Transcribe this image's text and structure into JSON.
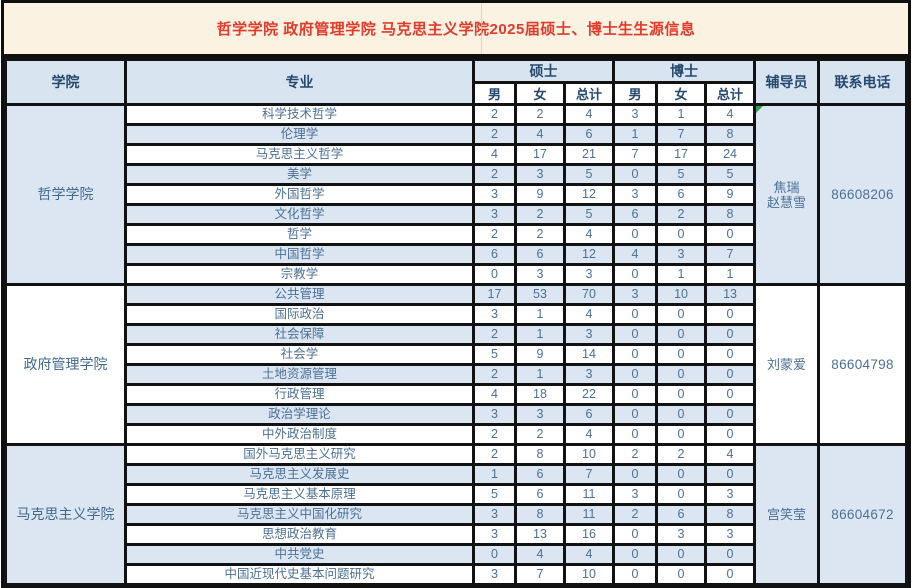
{
  "title": "哲学学院 政府管理学院 马克思主义学院2025届硕士、博士生生源信息",
  "colors": {
    "title_text": "#e23a2b",
    "title_bg": "#fbf2e2",
    "header_bg": "#d8e4f0",
    "band_row_bg": "#dbe6f2",
    "cell_text": "#4c7095",
    "header_text": "#26496f",
    "border": "#121212",
    "comment_marker_green": "#2f9e4e"
  },
  "header": {
    "college": "学院",
    "major": "专业",
    "master": "硕士",
    "doctor": "博士",
    "counselor": "辅导员",
    "phone": "联系电话",
    "sub": [
      "男",
      "女",
      "总计",
      "男",
      "女",
      "总计"
    ]
  },
  "sections": [
    {
      "college": "哲学学院",
      "shaded": true,
      "counselor_lines": [
        "焦瑞",
        "赵慧雪"
      ],
      "phone": "86608206",
      "has_comment_marker": true,
      "rows": [
        {
          "major": "科学技术哲学",
          "m": [
            2,
            2,
            4
          ],
          "d": [
            3,
            1,
            4
          ],
          "shaded": false
        },
        {
          "major": "伦理学",
          "m": [
            2,
            4,
            6
          ],
          "d": [
            1,
            7,
            8
          ],
          "shaded": true
        },
        {
          "major": "马克思主义哲学",
          "m": [
            4,
            17,
            21
          ],
          "d": [
            7,
            17,
            24
          ],
          "shaded": false
        },
        {
          "major": "美学",
          "m": [
            2,
            3,
            5
          ],
          "d": [
            0,
            5,
            5
          ],
          "shaded": true
        },
        {
          "major": "外国哲学",
          "m": [
            3,
            9,
            12
          ],
          "d": [
            3,
            6,
            9
          ],
          "shaded": false
        },
        {
          "major": "文化哲学",
          "m": [
            3,
            2,
            5
          ],
          "d": [
            6,
            2,
            8
          ],
          "shaded": true
        },
        {
          "major": "哲学",
          "m": [
            2,
            2,
            4
          ],
          "d": [
            0,
            0,
            0
          ],
          "shaded": false
        },
        {
          "major": "中国哲学",
          "m": [
            6,
            6,
            12
          ],
          "d": [
            4,
            3,
            7
          ],
          "shaded": true
        },
        {
          "major": "宗教学",
          "m": [
            0,
            3,
            3
          ],
          "d": [
            0,
            1,
            1
          ],
          "shaded": false
        }
      ]
    },
    {
      "college": "政府管理学院",
      "shaded": false,
      "counselor_lines": [
        "刘蒙爱"
      ],
      "phone": "86604798",
      "has_comment_marker": false,
      "rows": [
        {
          "major": "公共管理",
          "m": [
            17,
            53,
            70
          ],
          "d": [
            3,
            10,
            13
          ],
          "shaded": true
        },
        {
          "major": "国际政治",
          "m": [
            3,
            1,
            4
          ],
          "d": [
            0,
            0,
            0
          ],
          "shaded": false
        },
        {
          "major": "社会保障",
          "m": [
            2,
            1,
            3
          ],
          "d": [
            0,
            0,
            0
          ],
          "shaded": true
        },
        {
          "major": "社会学",
          "m": [
            5,
            9,
            14
          ],
          "d": [
            0,
            0,
            0
          ],
          "shaded": false
        },
        {
          "major": "土地资源管理",
          "m": [
            2,
            1,
            3
          ],
          "d": [
            0,
            0,
            0
          ],
          "shaded": true
        },
        {
          "major": "行政管理",
          "m": [
            4,
            18,
            22
          ],
          "d": [
            0,
            0,
            0
          ],
          "shaded": false
        },
        {
          "major": "政治学理论",
          "m": [
            3,
            3,
            6
          ],
          "d": [
            0,
            0,
            0
          ],
          "shaded": true
        },
        {
          "major": "中外政治制度",
          "m": [
            2,
            2,
            4
          ],
          "d": [
            0,
            0,
            0
          ],
          "shaded": false
        }
      ]
    },
    {
      "college": "马克思主义学院",
      "shaded": true,
      "counselor_lines": [
        "宫笑莹"
      ],
      "phone": "86604672",
      "has_comment_marker": false,
      "rows": [
        {
          "major": "国外马克思主义研究",
          "m": [
            2,
            8,
            10
          ],
          "d": [
            2,
            2,
            4
          ],
          "shaded": false
        },
        {
          "major": "马克思主义发展史",
          "m": [
            1,
            6,
            7
          ],
          "d": [
            0,
            0,
            0
          ],
          "shaded": true
        },
        {
          "major": "马克思主义基本原理",
          "m": [
            5,
            6,
            11
          ],
          "d": [
            3,
            0,
            3
          ],
          "shaded": false
        },
        {
          "major": "马克思主义中国化研究",
          "m": [
            3,
            8,
            11
          ],
          "d": [
            2,
            6,
            8
          ],
          "shaded": true
        },
        {
          "major": "思想政治教育",
          "m": [
            3,
            13,
            16
          ],
          "d": [
            0,
            3,
            3
          ],
          "shaded": false
        },
        {
          "major": "中共党史",
          "m": [
            0,
            4,
            4
          ],
          "d": [
            0,
            0,
            0
          ],
          "shaded": true
        },
        {
          "major": "中国近现代史基本问题研究",
          "m": [
            3,
            7,
            10
          ],
          "d": [
            0,
            0,
            0
          ],
          "shaded": false
        }
      ]
    }
  ]
}
